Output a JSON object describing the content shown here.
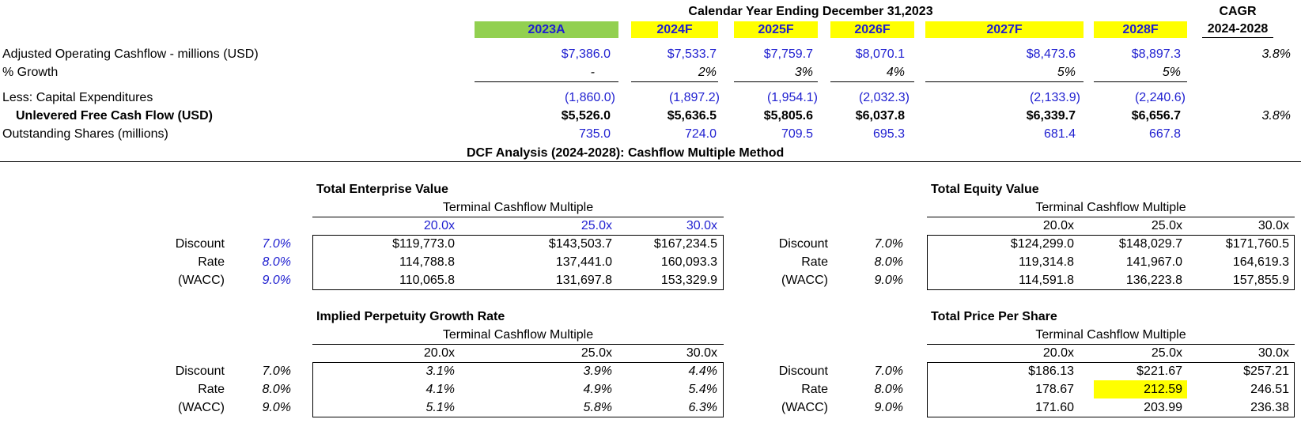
{
  "header": {
    "title": "Calendar Year Ending December 31,2023",
    "cagr_title": "CAGR",
    "cagr_range": "2024-2028",
    "years": [
      "2023A",
      "2024F",
      "2025F",
      "2026F",
      "2027F",
      "2028F"
    ],
    "year_colors": [
      "#92d050",
      "#ffff00",
      "#ffff00",
      "#ffff00",
      "#ffff00",
      "#ffff00"
    ]
  },
  "rows": {
    "aocf": {
      "label": "Adjusted Operating Cashflow - millions (USD)",
      "values": [
        "$7,386.0",
        "$7,533.7",
        "$7,759.7",
        "$8,070.1",
        "$8,473.6",
        "$8,897.3"
      ],
      "cagr": "3.8%"
    },
    "growth": {
      "label": "% Growth",
      "values": [
        "-",
        "2%",
        "3%",
        "4%",
        "5%",
        "5%"
      ]
    },
    "capex": {
      "label": "Less: Capital Expenditures",
      "values": [
        "(1,860.0)",
        "(1,897.2)",
        "(1,954.1)",
        "(2,032.3)",
        "(2,133.9)",
        "(2,240.6)"
      ]
    },
    "ufcf": {
      "label": "Unlevered Free Cash Flow (USD)",
      "values": [
        "$5,526.0",
        "$5,636.5",
        "$5,805.6",
        "$6,037.8",
        "$6,339.7",
        "$6,656.7"
      ],
      "cagr": "3.8%"
    },
    "shares": {
      "label": "Outstanding Shares (millions)",
      "values": [
        "735.0",
        "724.0",
        "709.5",
        "695.3",
        "681.4",
        "667.8"
      ]
    }
  },
  "dcf_title": "DCF Analysis (2024-2028):  Cashflow Multiple Method",
  "row_labels": [
    "Discount",
    "Rate",
    "(WACC)"
  ],
  "rates": [
    "7.0%",
    "8.0%",
    "9.0%"
  ],
  "multiple_label": "Terminal Cashflow Multiple",
  "multiples": [
    "20.0x",
    "25.0x",
    "30.0x"
  ],
  "tev": {
    "title": "Total Enterprise Value",
    "values": [
      [
        "$119,773.0",
        "$143,503.7",
        "$167,234.5"
      ],
      [
        "114,788.8",
        "137,441.0",
        "160,093.3"
      ],
      [
        "110,065.8",
        "131,697.8",
        "153,329.9"
      ]
    ]
  },
  "tq": {
    "title": "Total Equity Value",
    "values": [
      [
        "$124,299.0",
        "$148,029.7",
        "$171,760.5"
      ],
      [
        "119,314.8",
        "141,967.0",
        "164,619.3"
      ],
      [
        "114,591.8",
        "136,223.8",
        "157,855.9"
      ]
    ]
  },
  "ipg": {
    "title": "Implied Perpetuity Growth Rate",
    "values": [
      [
        "3.1%",
        "3.9%",
        "4.4%"
      ],
      [
        "4.1%",
        "4.9%",
        "5.4%"
      ],
      [
        "5.1%",
        "5.8%",
        "6.3%"
      ]
    ]
  },
  "tpps": {
    "title": "Total Price Per Share",
    "values": [
      [
        "$186.13",
        "$221.67",
        "$257.21"
      ],
      [
        "178.67",
        "212.59",
        "246.51"
      ],
      [
        "171.60",
        "203.99",
        "236.38"
      ]
    ],
    "highlight_color": "#ffff00"
  }
}
